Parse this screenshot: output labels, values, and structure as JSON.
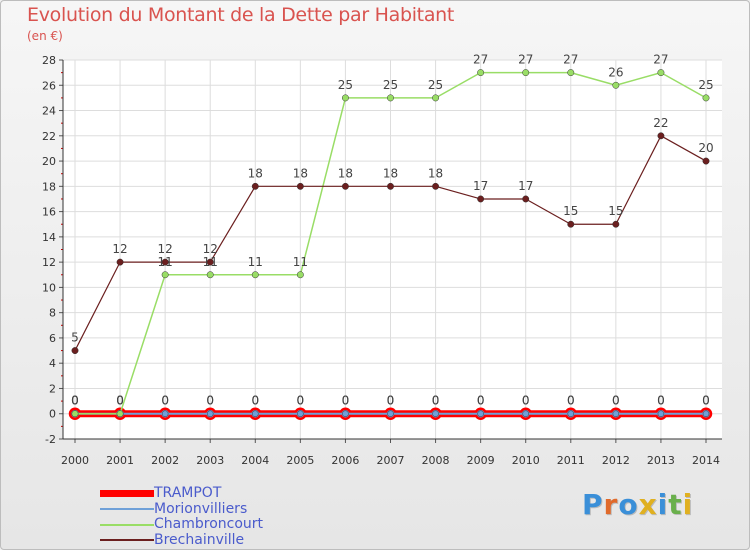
{
  "title": "Evolution du Montant de la Dette par Habitant",
  "unit": "(en €)",
  "brand": "Proxiti",
  "chart_data": {
    "type": "line",
    "x": [
      "2000",
      "2001",
      "2002",
      "2003",
      "2004",
      "2005",
      "2006",
      "2007",
      "2008",
      "2009",
      "2010",
      "2011",
      "2012",
      "2013",
      "2014"
    ],
    "ylim": [
      -2,
      28
    ],
    "yticks": [
      -2,
      0,
      2,
      4,
      6,
      8,
      10,
      12,
      14,
      16,
      18,
      20,
      22,
      24,
      26,
      28
    ],
    "grid": true,
    "legend_position": "bottom-left",
    "series": [
      {
        "name": "TRAMPOT",
        "color": "#ff0000",
        "values": [
          0,
          0,
          0,
          0,
          0,
          0,
          0,
          0,
          0,
          0,
          0,
          0,
          0,
          0,
          0
        ]
      },
      {
        "name": "Morionvilliers",
        "color": "#6fa0d8",
        "values": [
          0,
          0,
          0,
          0,
          0,
          0,
          0,
          0,
          0,
          0,
          0,
          0,
          0,
          0,
          0
        ]
      },
      {
        "name": "Chambroncourt",
        "color": "#99dd66",
        "values": [
          0,
          0,
          11,
          11,
          11,
          11,
          25,
          25,
          25,
          27,
          27,
          27,
          26,
          27,
          25
        ]
      },
      {
        "name": "Brechainville",
        "color": "#6b1f1f",
        "values": [
          5,
          12,
          12,
          12,
          18,
          18,
          18,
          18,
          18,
          17,
          17,
          15,
          15,
          22,
          20
        ]
      }
    ]
  }
}
